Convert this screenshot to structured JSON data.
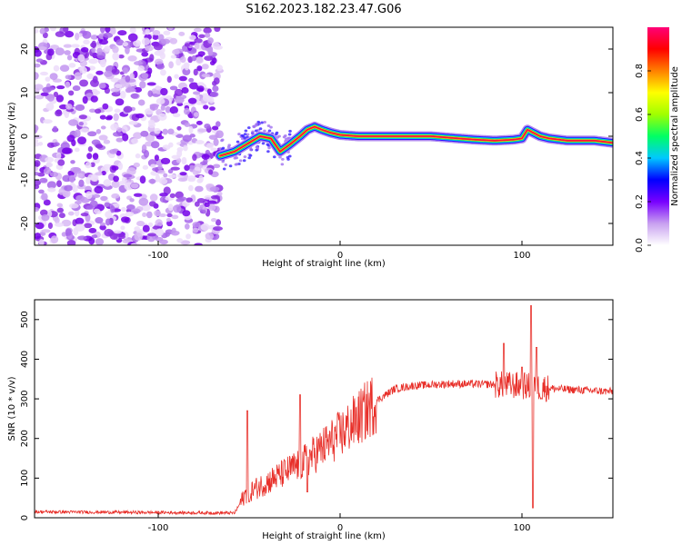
{
  "figure": {
    "title": "S162.2023.182.23.47.G06"
  },
  "chart_data": [
    {
      "type": "heatmap",
      "name": "spectrogram",
      "xlabel": "Height of straight line (km)",
      "ylabel": "Frequency (Hz)",
      "xlim": [
        -168,
        150
      ],
      "ylim": [
        -25,
        25
      ],
      "xticks": [
        -100,
        0,
        100
      ],
      "yticks": [
        -20,
        -10,
        0,
        10,
        20
      ],
      "noise_region_x": [
        -168,
        -66
      ],
      "ridge": {
        "x": [
          -66,
          -58,
          -50,
          -44,
          -38,
          -33,
          -28,
          -22,
          -18,
          -14,
          -10,
          -5,
          0,
          10,
          30,
          50,
          65,
          75,
          85,
          95,
          100,
          103,
          110,
          115,
          125,
          140,
          150
        ],
        "y": [
          -4.5,
          -3.5,
          -1.5,
          0,
          -0.5,
          -3.5,
          -2,
          0,
          1.5,
          2.2,
          1.5,
          0.8,
          0.3,
          0,
          0,
          0,
          -0.5,
          -0.8,
          -1,
          -0.8,
          -0.5,
          1.5,
          0,
          -0.5,
          -1,
          -1,
          -1.5
        ]
      },
      "colorbar": {
        "label": "Normalized spectral amplitude",
        "ticks": [
          "0.0",
          "0.2",
          "0.4",
          "0.6",
          "0.8"
        ],
        "range": [
          0,
          1
        ],
        "colors": [
          "#ffffff",
          "#c8a0f0",
          "#7800ff",
          "#0000ff",
          "#00c8ff",
          "#00ff64",
          "#a0ff00",
          "#ffff00",
          "#ff8000",
          "#ff0000",
          "#ff0078"
        ]
      }
    },
    {
      "type": "line",
      "name": "snr",
      "xlabel": "Height of straight line (km)",
      "ylabel": "SNR (10 * v/v)",
      "xlim": [
        -168,
        150
      ],
      "ylim": [
        0,
        550
      ],
      "xticks": [
        -100,
        0,
        100
      ],
      "yticks": [
        0,
        100,
        200,
        300,
        400,
        500
      ],
      "color": "#e8302a",
      "baseline": [
        [
          -168,
          15
        ],
        [
          -58,
          12
        ],
        [
          -52,
          60
        ],
        [
          -40,
          90
        ],
        [
          -30,
          115
        ],
        [
          -20,
          140
        ],
        [
          -10,
          175
        ],
        [
          0,
          210
        ],
        [
          10,
          250
        ],
        [
          20,
          295
        ],
        [
          30,
          325
        ],
        [
          40,
          333
        ],
        [
          60,
          338
        ],
        [
          80,
          337
        ],
        [
          100,
          333
        ],
        [
          120,
          325
        ],
        [
          150,
          318
        ]
      ],
      "spikes": [
        [
          -51,
          270
        ],
        [
          -50,
          40
        ],
        [
          -22,
          310
        ],
        [
          -18,
          65
        ],
        [
          90,
          440
        ],
        [
          100,
          380
        ],
        [
          105,
          535
        ],
        [
          106,
          25
        ],
        [
          108,
          430
        ],
        [
          111,
          300
        ]
      ]
    }
  ]
}
